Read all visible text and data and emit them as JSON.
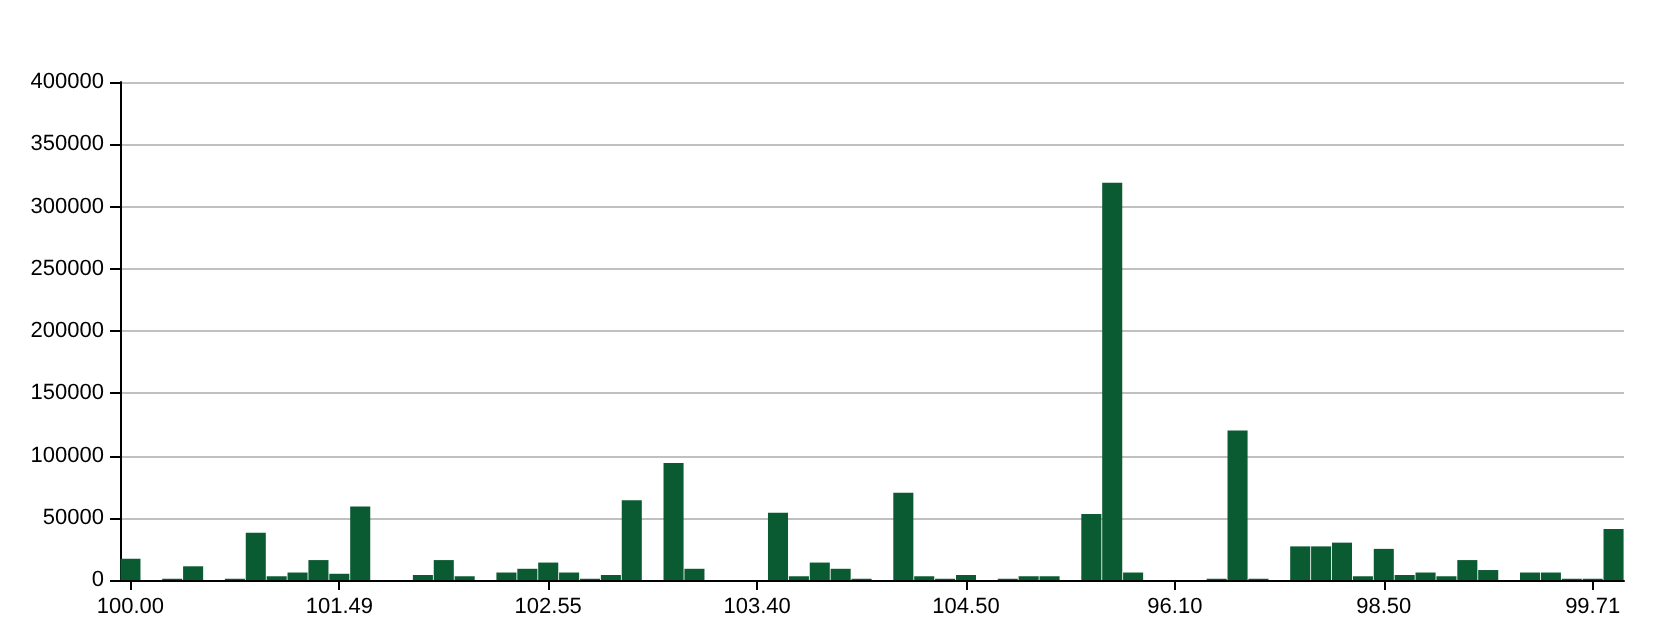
{
  "chart_data": {
    "type": "bar",
    "categories": [
      "100.00",
      null,
      null,
      null,
      null,
      null,
      null,
      null,
      null,
      null,
      "101.49",
      null,
      null,
      null,
      null,
      null,
      null,
      null,
      null,
      null,
      "102.55",
      null,
      null,
      null,
      null,
      null,
      null,
      null,
      null,
      null,
      "103.40",
      null,
      null,
      null,
      null,
      null,
      null,
      null,
      null,
      null,
      "104.50",
      null,
      null,
      null,
      null,
      null,
      null,
      null,
      null,
      null,
      "96.10",
      null,
      null,
      null,
      null,
      null,
      null,
      null,
      null,
      null,
      "98.50",
      null,
      null,
      null,
      null,
      null,
      null,
      null,
      null,
      null,
      "99.71",
      null
    ],
    "values": [
      17000,
      0,
      1000,
      11000,
      0,
      1000,
      38000,
      3000,
      6000,
      16000,
      5000,
      59000,
      0,
      0,
      4000,
      16000,
      3000,
      0,
      6000,
      9000,
      14000,
      6000,
      1000,
      4000,
      64000,
      0,
      94000,
      9000,
      0,
      0,
      0,
      54000,
      3000,
      14000,
      9000,
      1000,
      0,
      70000,
      3000,
      1000,
      4000,
      0,
      1000,
      3000,
      3000,
      0,
      53000,
      319000,
      6000,
      0,
      0,
      0,
      1000,
      120000,
      1000,
      0,
      27000,
      27000,
      30000,
      3000,
      25000,
      4000,
      6000,
      3000,
      16000,
      8000,
      0,
      6000,
      6000,
      1000,
      1000,
      41000
    ],
    "color": "#0a5a32",
    "ylim": [
      0,
      400000
    ],
    "yticks": [
      0,
      50000,
      100000,
      150000,
      200000,
      250000,
      300000,
      350000,
      400000
    ],
    "grid": "y"
  }
}
